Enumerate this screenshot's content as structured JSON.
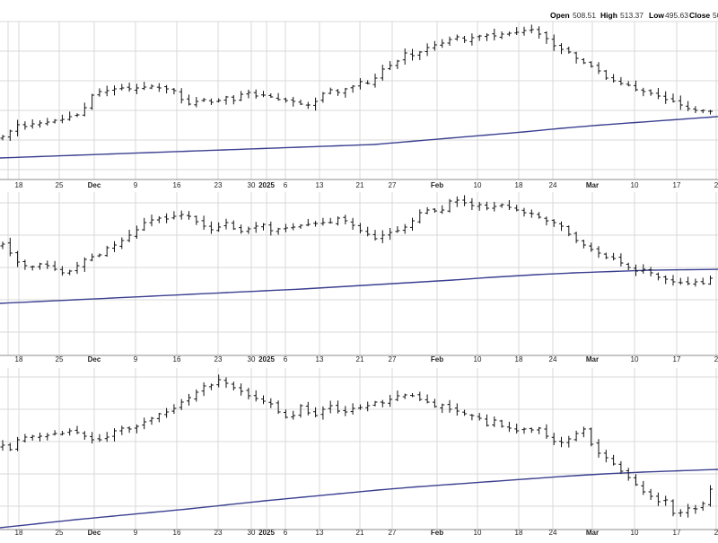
{
  "header": {
    "ohlc": [
      {
        "label": "Open",
        "value": "508.51"
      },
      {
        "label": "High",
        "value": "513.37"
      },
      {
        "label": "Low",
        "value": "495.63"
      },
      {
        "label": "Close",
        "value": "50"
      }
    ]
  },
  "colors": {
    "price_bar": "#111111",
    "moving_average": "#3a3f8f",
    "grid": "#d9d9d9",
    "panel_border": "#8c8c8c",
    "background": "#ffffff"
  },
  "chart_data": [
    {
      "type": "ohlc",
      "panel": 1,
      "grid": true,
      "x_ticks": [
        "18",
        "25",
        "Dec",
        "9",
        "16",
        "23",
        "30",
        "2025",
        "6",
        "13",
        "21",
        "27",
        "Feb",
        "10",
        "18",
        "24",
        "Mar",
        "10",
        "17",
        "2"
      ],
      "bold_ticks": [
        "Dec",
        "2025",
        "Feb",
        "Mar"
      ],
      "close_series": [
        152,
        146,
        139,
        141,
        138,
        137,
        136,
        134,
        133,
        130,
        128,
        120,
        106,
        102,
        101,
        99,
        98,
        99,
        98,
        97,
        96,
        98,
        99,
        101,
        111,
        116,
        113,
        111,
        114,
        112,
        108,
        112,
        105,
        103,
        107,
        106,
        108,
        111,
        112,
        113,
        116,
        117,
        113,
        104,
        100,
        103,
        99,
        96,
        91,
        93,
        87,
        77,
        73,
        68,
        59,
        62,
        58,
        53,
        50,
        48,
        44,
        41,
        45,
        42,
        40,
        39,
        40,
        38,
        37,
        36,
        34,
        33,
        38,
        43,
        51,
        55,
        58,
        65,
        70,
        74,
        79,
        87,
        90,
        93,
        95,
        100,
        102,
        104,
        107,
        111,
        113,
        117,
        121,
        123,
        123,
        124,
        126
      ],
      "moving_average": [
        176,
        175.7,
        175.4,
        175.1,
        174.8,
        174.5,
        174.2,
        173.9,
        173.6,
        173.3,
        173,
        172.7,
        172.4,
        172.1,
        171.8,
        171.5,
        171.2,
        170.9,
        170.6,
        170.3,
        170,
        169.7,
        169.4,
        169.1,
        168.8,
        168.5,
        168.2,
        167.9,
        167.6,
        167.3,
        167,
        166.7,
        166.4,
        166.1,
        165.8,
        165.5,
        165.2,
        164.9,
        164.6,
        164.3,
        164,
        163.7,
        163.4,
        163.1,
        162.8,
        162.5,
        162.2,
        161.9,
        161.6,
        161.3,
        161,
        160.3,
        159.6,
        158.9,
        158.2,
        157.5,
        156.8,
        156.1,
        155.4,
        154.7,
        154,
        153.3,
        152.6,
        151.9,
        151.2,
        150.5,
        149.8,
        149.1,
        148.4,
        147.7,
        147,
        146.2,
        145.4,
        144.6,
        143.8,
        143,
        142.3,
        141.6,
        140.9,
        140.2,
        139.5,
        138.9,
        138.3,
        137.7,
        137.1,
        136.5,
        135.9,
        135.3,
        134.7,
        134.1,
        133.5,
        132.9,
        132.3,
        131.7,
        131.1,
        130.5,
        129.8
      ]
    },
    {
      "type": "ohlc",
      "panel": 2,
      "grid": true,
      "x_ticks": [
        "18",
        "25",
        "Dec",
        "9",
        "16",
        "23",
        "30",
        "2025",
        "6",
        "13",
        "21",
        "27",
        "Feb",
        "10",
        "18",
        "24",
        "Mar",
        "10",
        "17",
        "2"
      ],
      "bold_ticks": [
        "Dec",
        "2025",
        "Feb",
        "Mar"
      ],
      "close_series": [
        272,
        282,
        292,
        296,
        297,
        294,
        296,
        300,
        304,
        302,
        296,
        289,
        286,
        284,
        276,
        273,
        268,
        262,
        256,
        248,
        245,
        243,
        244,
        241,
        239,
        241,
        247,
        252,
        256,
        253,
        248,
        255,
        258,
        255,
        252,
        250,
        257,
        255,
        254,
        253,
        251,
        250,
        249,
        248,
        248,
        243,
        246,
        251,
        257,
        261,
        266,
        262,
        259,
        257,
        253,
        246,
        237,
        234,
        235,
        234,
        224,
        223,
        226,
        229,
        228,
        232,
        230,
        228,
        231,
        234,
        237,
        238,
        242,
        246,
        248,
        252,
        261,
        268,
        273,
        278,
        282,
        287,
        288,
        293,
        298,
        302,
        300,
        304,
        309,
        311,
        314,
        315,
        316,
        314,
        316,
        310
      ],
      "moving_average": [
        338,
        337.6,
        337.2,
        336.8,
        336.4,
        336,
        335.6,
        335.2,
        334.8,
        334.4,
        334,
        333.6,
        333.2,
        332.8,
        332.4,
        332,
        331.6,
        331.2,
        330.8,
        330.4,
        330,
        329.6,
        329.2,
        328.8,
        328.4,
        328,
        327.6,
        327.2,
        326.8,
        326.4,
        326,
        325.6,
        325.2,
        324.8,
        324.4,
        324,
        323.6,
        323.2,
        322.8,
        322.4,
        322,
        321.5,
        321,
        320.5,
        320,
        319.5,
        319,
        318.5,
        318,
        317.5,
        317,
        316.5,
        316,
        315.5,
        315,
        314.5,
        314,
        313.5,
        313,
        312.5,
        312,
        311.4,
        310.8,
        310.2,
        309.6,
        309,
        308.5,
        308,
        307.5,
        307,
        306.5,
        306,
        305.6,
        305.2,
        304.8,
        304.4,
        304,
        303.7,
        303.4,
        303.1,
        302.8,
        302.5,
        302.2,
        301.9,
        301.6,
        301.3,
        301,
        300.9,
        300.8,
        300.7,
        300.6,
        300.5,
        300.4,
        300.3,
        300.2,
        300.1
      ]
    },
    {
      "type": "ohlc",
      "panel": 3,
      "grid": true,
      "x_ticks": [
        "18",
        "25",
        "Dec",
        "9",
        "16",
        "23",
        "30",
        "2025",
        "6",
        "13",
        "21",
        "27",
        "Feb",
        "10",
        "18",
        "24",
        "Mar",
        "10",
        "17",
        "2"
      ],
      "bold_ticks": [
        "Dec",
        "2025",
        "Feb",
        "Mar"
      ],
      "close_series": [
        496,
        501,
        490,
        487,
        486,
        486,
        485,
        483,
        483,
        480,
        482,
        486,
        490,
        490,
        487,
        480,
        477,
        478,
        475,
        470,
        466,
        461,
        459,
        455,
        448,
        443,
        437,
        430,
        429,
        423,
        427,
        432,
        436,
        441,
        444,
        447,
        450,
        459,
        465,
        463,
        452,
        460,
        463,
        456,
        452,
        458,
        459,
        455,
        454,
        452,
        448,
        449,
        445,
        441,
        440,
        441,
        445,
        448,
        453,
        451,
        456,
        458,
        461,
        463,
        466,
        474,
        468,
        475,
        477,
        480,
        478,
        479,
        477,
        486,
        492,
        493,
        489,
        483,
        478,
        495,
        505,
        510,
        517,
        525,
        532,
        540,
        548,
        553,
        559,
        557,
        572,
        571,
        566,
        567,
        561,
        545,
        550
      ],
      "moving_average": [
        588,
        587.1,
        586.2,
        585.3,
        584.4,
        583.5,
        582.6,
        581.7,
        580.8,
        579.9,
        579,
        578.2,
        577.4,
        576.6,
        575.8,
        575,
        574.2,
        573.4,
        572.6,
        571.8,
        571,
        570.2,
        569.4,
        568.6,
        567.8,
        567,
        566.1,
        565.2,
        564.3,
        563.4,
        562.5,
        561.6,
        560.7,
        559.8,
        558.9,
        558,
        557.2,
        556.4,
        555.6,
        554.8,
        554,
        553.2,
        552.4,
        551.6,
        550.8,
        550,
        549.2,
        548.4,
        547.6,
        546.8,
        546,
        545.3,
        544.6,
        543.9,
        543.2,
        542.5,
        541.9,
        541.3,
        540.7,
        540.1,
        539.5,
        538.9,
        538.3,
        537.7,
        537.1,
        536.5,
        535.9,
        535.3,
        534.7,
        534.1,
        533.5,
        532.9,
        532.3,
        531.7,
        531.1,
        530.5,
        530,
        529.5,
        529,
        528.5,
        528,
        527.6,
        527.2,
        526.8,
        526.4,
        526,
        525.7,
        525.4,
        525.1,
        524.8,
        524.5,
        524.2,
        523.9,
        523.6,
        523.3,
        523
      ]
    }
  ]
}
